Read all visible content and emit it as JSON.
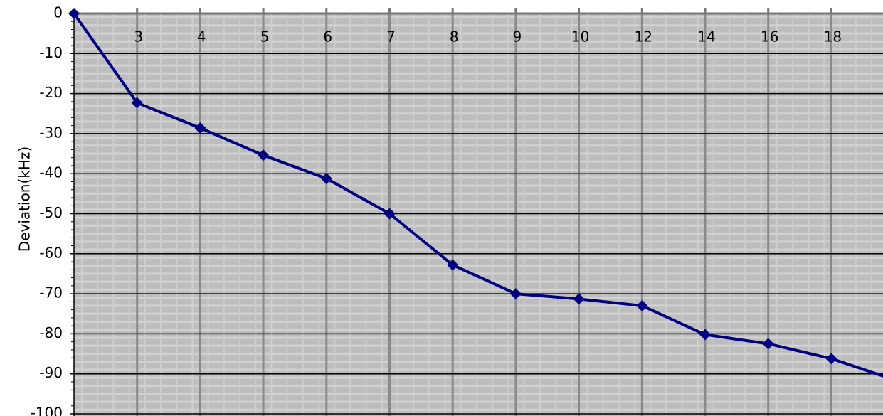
{
  "chart_data": {
    "type": "line",
    "y_label": "Deviation(kHz)",
    "categories": [
      null,
      "3",
      "4",
      "5",
      "6",
      "7",
      "8",
      "9",
      "10",
      "12",
      "14",
      "16",
      "18",
      null
    ],
    "series": [
      {
        "name": "Deviation",
        "color": "#000080",
        "values": [
          0,
          -22.3,
          -28.6,
          -35.4,
          -41.2,
          -50,
          -62.8,
          -70,
          -71.3,
          -73,
          -80.2,
          -82.5,
          -86.2,
          -91.5
        ]
      }
    ],
    "ylim": [
      -100,
      0
    ],
    "yticks": [
      0,
      -10,
      -20,
      -30,
      -40,
      -50,
      -60,
      -70,
      -80,
      -90,
      -100
    ],
    "grid": true
  }
}
